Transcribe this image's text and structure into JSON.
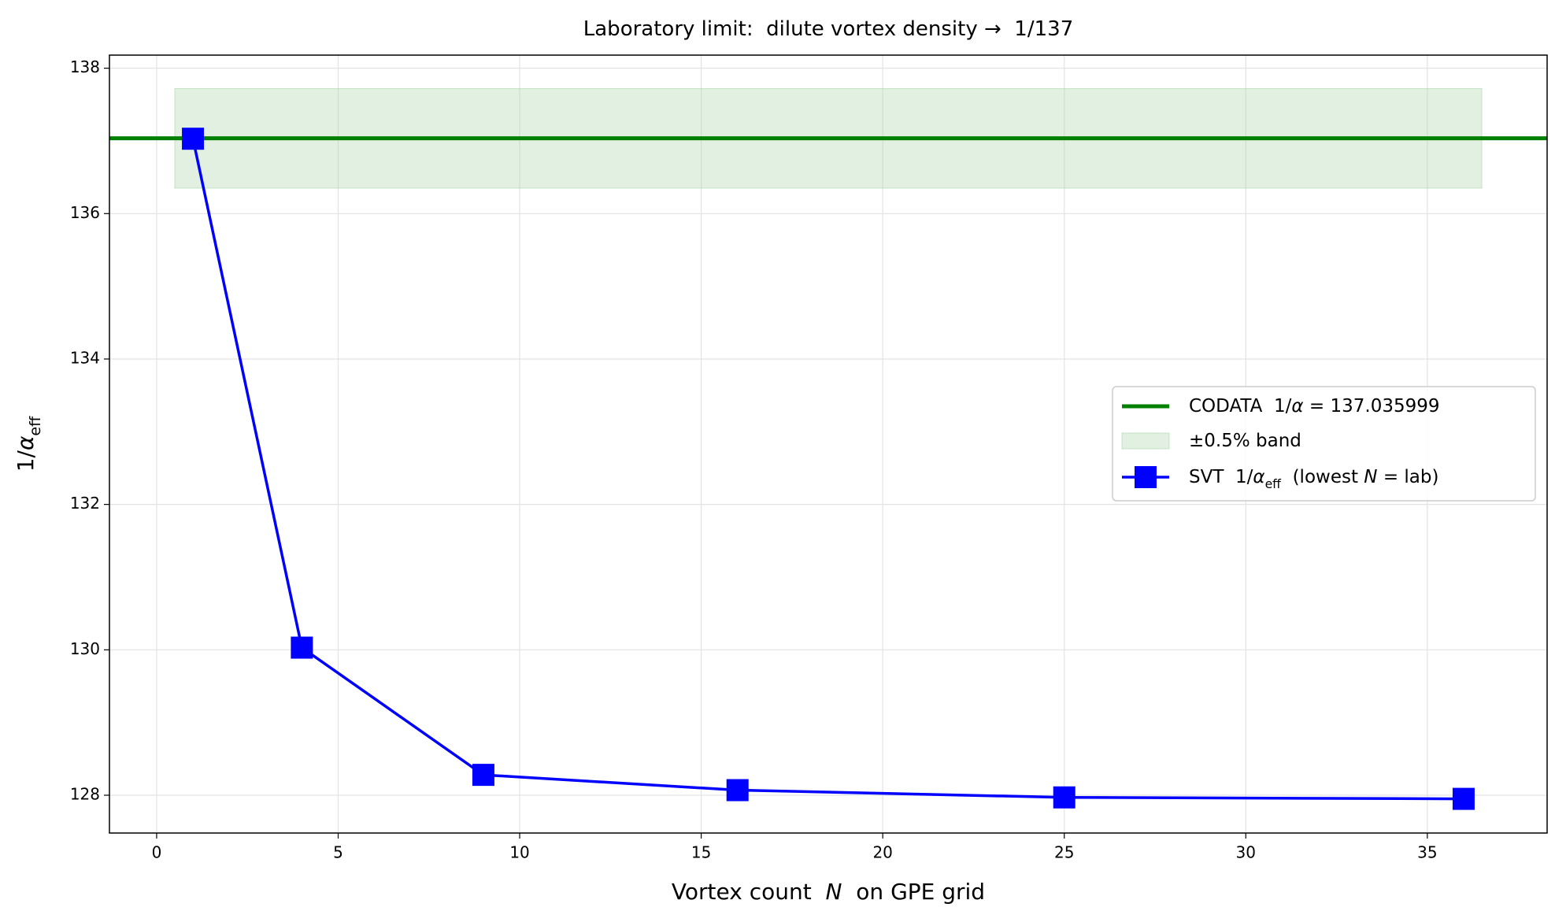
{
  "chart_data": {
    "type": "line",
    "title": [
      "Laboratory limit:  dilute vortex density →  1/137"
    ],
    "xlabel": [
      {
        "text": "Vortex count  "
      },
      {
        "text": "N",
        "style": "italic"
      },
      {
        "text": "  on GPE grid"
      }
    ],
    "ylabel": [
      {
        "text": "1/"
      },
      {
        "text": "α",
        "style": "italic"
      },
      {
        "text": "eff",
        "style": "sub"
      }
    ],
    "x": [
      1,
      4,
      9,
      16,
      25,
      36
    ],
    "xlim": [
      -1.3,
      38.3
    ],
    "xticks": [
      0,
      5,
      10,
      15,
      20,
      25,
      30,
      35
    ],
    "ylim": [
      127.48,
      138.18
    ],
    "yticks": [
      128,
      130,
      132,
      134,
      136,
      138
    ],
    "grid": true,
    "legend": "right",
    "reference": {
      "name": [
        {
          "text": "CODATA  1/"
        },
        {
          "text": "α",
          "style": "italic"
        },
        {
          "text": " = 137.035999"
        }
      ],
      "value": 137.035999,
      "color": "#008000"
    },
    "band": {
      "name": [
        {
          "text": "±0.5% band"
        }
      ],
      "x": [
        0.5,
        36.5
      ],
      "y": [
        136.35,
        137.72
      ],
      "color": "#a8d5a8"
    },
    "series": [
      {
        "name": [
          {
            "text": "SVT  1/"
          },
          {
            "text": "α",
            "style": "italic"
          },
          {
            "text": "eff",
            "style": "sub"
          },
          {
            "text": "  (lowest "
          },
          {
            "text": "N",
            "style": "italic"
          },
          {
            "text": " = lab)"
          }
        ],
        "color": "#0000ff",
        "values": [
          137.03,
          130.03,
          128.28,
          128.07,
          127.97,
          127.95
        ]
      }
    ]
  }
}
